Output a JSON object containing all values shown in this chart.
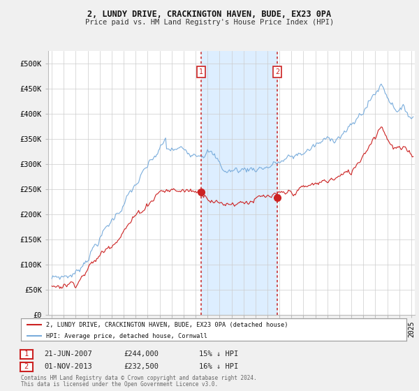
{
  "title": "2, LUNDY DRIVE, CRACKINGTON HAVEN, BUDE, EX23 0PA",
  "subtitle": "Price paid vs. HM Land Registry's House Price Index (HPI)",
  "ylabel_ticks": [
    "£0",
    "£50K",
    "£100K",
    "£150K",
    "£200K",
    "£250K",
    "£300K",
    "£350K",
    "£400K",
    "£450K",
    "£500K"
  ],
  "ytick_vals": [
    0,
    50000,
    100000,
    150000,
    200000,
    250000,
    300000,
    350000,
    400000,
    450000,
    500000
  ],
  "ylim": [
    0,
    525000
  ],
  "xlim_start": 1994.7,
  "xlim_end": 2025.3,
  "sale1_date": 2007.47,
  "sale1_price": 244000,
  "sale1_label": "1",
  "sale2_date": 2013.83,
  "sale2_price": 232500,
  "sale2_label": "2",
  "hpi_color": "#7aaddc",
  "price_color": "#cc2222",
  "shade_color": "#ddeeff",
  "vline_color": "#cc3333",
  "legend_label1": "2, LUNDY DRIVE, CRACKINGTON HAVEN, BUDE, EX23 0PA (detached house)",
  "legend_label2": "HPI: Average price, detached house, Cornwall",
  "footer1": "Contains HM Land Registry data © Crown copyright and database right 2024.",
  "footer2": "This data is licensed under the Open Government Licence v3.0.",
  "annotation1_date": "21-JUN-2007",
  "annotation1_price": "£244,000",
  "annotation1_hpi": "15% ↓ HPI",
  "annotation2_date": "01-NOV-2013",
  "annotation2_price": "£232,500",
  "annotation2_hpi": "16% ↓ HPI",
  "background_color": "#f0f0f0",
  "plot_bg_color": "#ffffff",
  "grid_color": "#cccccc"
}
